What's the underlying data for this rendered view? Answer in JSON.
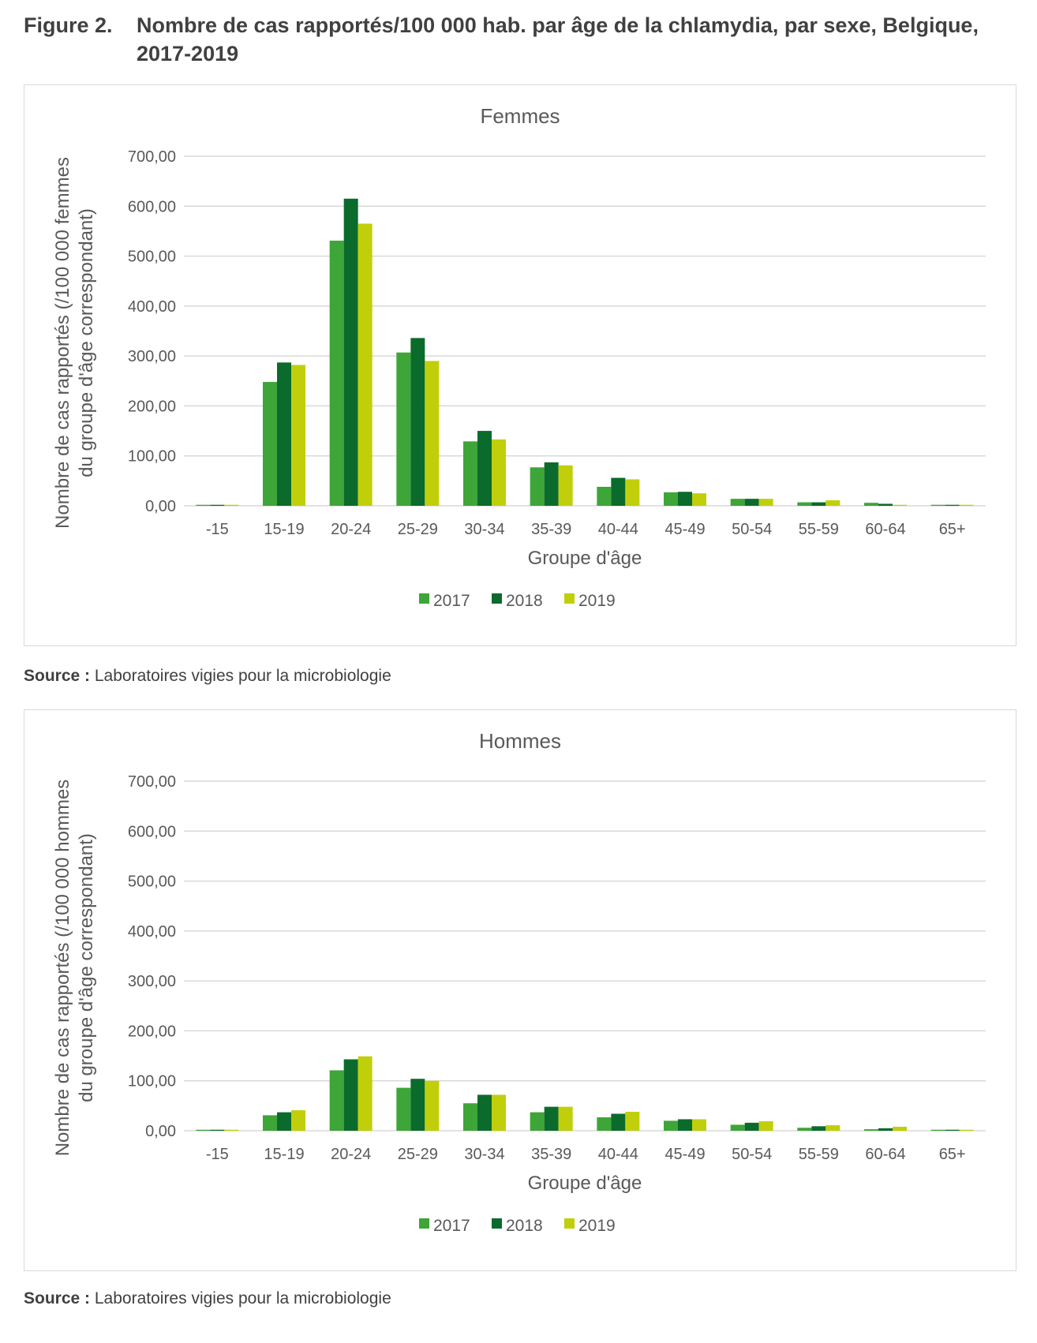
{
  "figure": {
    "number": "Figure 2.",
    "title": "Nombre de cas rapportés/100 000 hab. par âge de la chlamydia, par sexe, Belgique, 2017-2019"
  },
  "colors": {
    "2017": "#3ea538",
    "2018": "#0b6b2c",
    "2019": "#c1cf0b",
    "grid": "#d9d9d9",
    "text": "#595959"
  },
  "chart_data": [
    {
      "type": "bar",
      "title": "Femmes",
      "xlabel": "Groupe d'âge",
      "ylabel": "Nombre de cas rapportés (/100 000 femmes du groupe d'âge correspondant)",
      "ylim": [
        0,
        700
      ],
      "yticks": [
        "0,00",
        "100,00",
        "200,00",
        "300,00",
        "400,00",
        "500,00",
        "600,00",
        "700,00"
      ],
      "grid": true,
      "legend_position": "bottom",
      "categories": [
        "-15",
        "15-19",
        "20-24",
        "25-29",
        "30-34",
        "35-39",
        "40-44",
        "45-49",
        "50-54",
        "55-59",
        "60-64",
        "65+"
      ],
      "series": [
        {
          "name": "2017",
          "values": [
            2,
            248,
            531,
            307,
            129,
            77,
            38,
            27,
            14,
            7,
            6,
            2
          ]
        },
        {
          "name": "2018",
          "values": [
            2,
            287,
            615,
            336,
            150,
            87,
            56,
            28,
            14,
            7,
            4,
            2
          ]
        },
        {
          "name": "2019",
          "values": [
            2,
            282,
            565,
            290,
            133,
            81,
            53,
            25,
            14,
            11,
            2,
            2
          ]
        }
      ]
    },
    {
      "type": "bar",
      "title": "Hommes",
      "xlabel": "Groupe d'âge",
      "ylabel": "Nombre de cas rapportés (/100 000 hommes du groupe d'âge correspondant)",
      "ylim": [
        0,
        700
      ],
      "yticks": [
        "0,00",
        "100,00",
        "200,00",
        "300,00",
        "400,00",
        "500,00",
        "600,00",
        "700,00"
      ],
      "grid": true,
      "legend_position": "bottom",
      "categories": [
        "-15",
        "15-19",
        "20-24",
        "25-29",
        "30-34",
        "35-39",
        "40-44",
        "45-49",
        "50-54",
        "55-59",
        "60-64",
        "65+"
      ],
      "series": [
        {
          "name": "2017",
          "values": [
            2,
            31,
            121,
            86,
            55,
            37,
            27,
            20,
            12,
            6,
            3,
            2
          ]
        },
        {
          "name": "2018",
          "values": [
            2,
            37,
            143,
            104,
            72,
            48,
            34,
            23,
            16,
            9,
            5,
            2
          ]
        },
        {
          "name": "2019",
          "values": [
            2,
            41,
            149,
            100,
            72,
            48,
            38,
            23,
            19,
            11,
            8,
            2
          ]
        }
      ]
    }
  ],
  "source": {
    "label": "Source :",
    "text": "Laboratoires vigies pour la microbiologie"
  }
}
